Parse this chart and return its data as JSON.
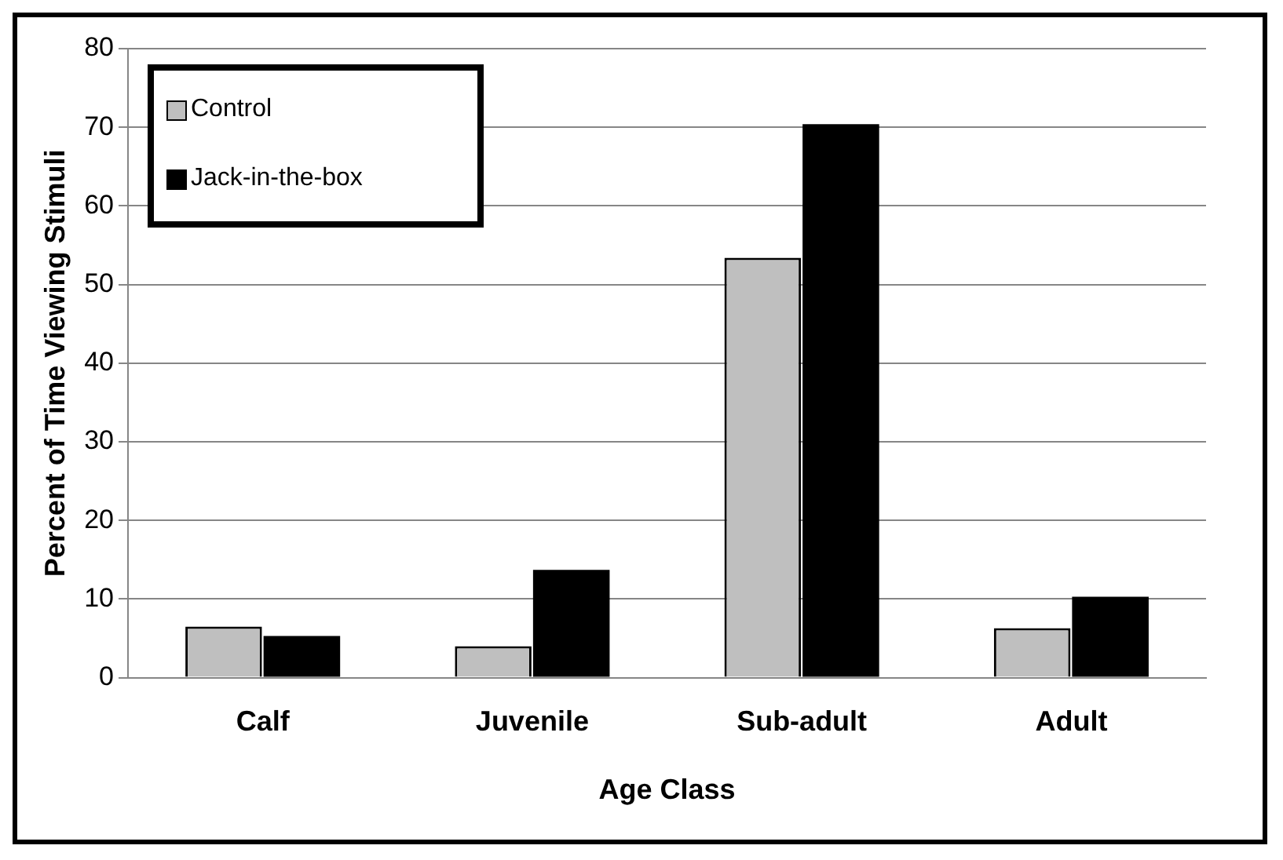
{
  "chart_data": {
    "type": "bar",
    "xlabel": "Age Class",
    "ylabel": "Percent of Time Viewing Stimuli",
    "categories": [
      "Calf",
      "Juvenile",
      "Sub-adult",
      "Adult"
    ],
    "series": [
      {
        "name": "Control",
        "color": "#bfbfbf",
        "values": [
          6.5,
          4.0,
          53.4,
          6.3
        ]
      },
      {
        "name": "Jack-in-the-box",
        "color": "#000000",
        "values": [
          5.3,
          13.7,
          70.4,
          10.3
        ]
      }
    ],
    "ylim": [
      0,
      80
    ],
    "yticks": [
      0,
      10,
      20,
      30,
      40,
      50,
      60,
      70,
      80
    ],
    "grid": "y",
    "legend": "top left"
  }
}
